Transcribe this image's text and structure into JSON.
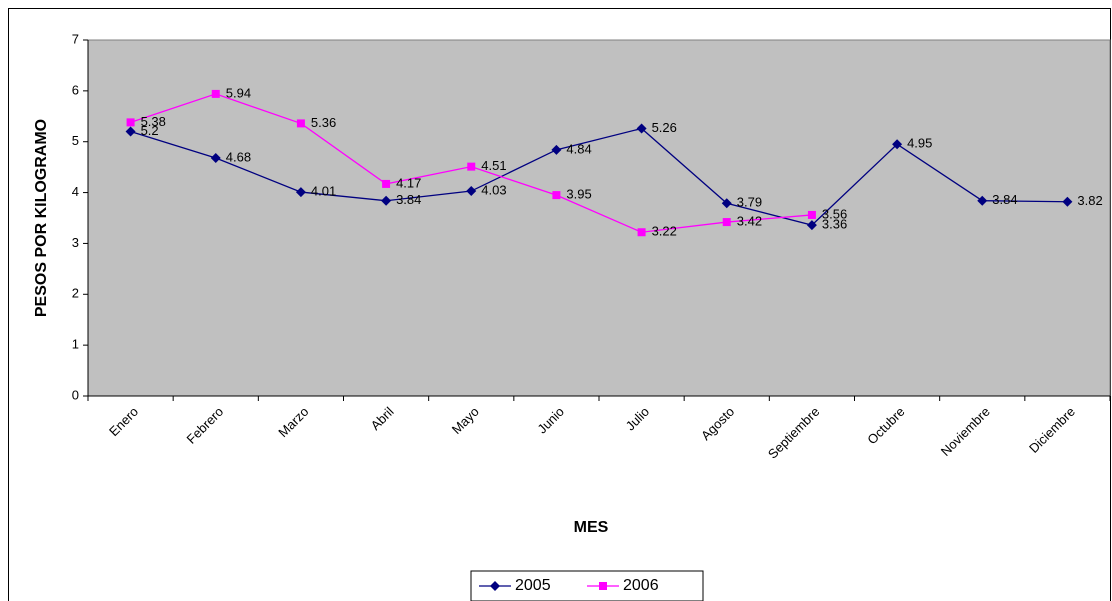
{
  "chart_data": {
    "type": "line",
    "x_label": "MES",
    "y_label": "PESOS POR KILOGRAMO",
    "categories": [
      "Enero",
      "Febrero",
      "Marzo",
      "Abril",
      "Mayo",
      "Junio",
      "Julio",
      "Agosto",
      "Septiembre",
      "Octubre",
      "Noviembre",
      "Diciembre"
    ],
    "series": [
      {
        "name": "2005",
        "color": "#000080",
        "marker": "diamond",
        "values": [
          5.2,
          4.68,
          4.01,
          3.84,
          4.03,
          4.84,
          5.26,
          3.79,
          3.36,
          4.95,
          3.84,
          3.82
        ]
      },
      {
        "name": "2006",
        "color": "#ff00ff",
        "marker": "square",
        "values": [
          5.38,
          5.94,
          5.36,
          4.17,
          4.51,
          3.95,
          3.22,
          3.42,
          3.56,
          null,
          null,
          null
        ]
      }
    ],
    "ylim": [
      0,
      7
    ],
    "yticks": [
      0,
      1,
      2,
      3,
      4,
      5,
      6,
      7
    ],
    "grid": false,
    "legend": "bottom",
    "plot_background": "#c0c0c0"
  }
}
